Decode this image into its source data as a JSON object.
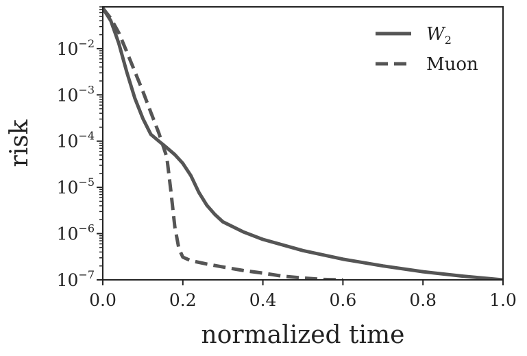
{
  "chart_data": {
    "type": "line",
    "title": "",
    "xlabel": "normalized time",
    "ylabel": "risk",
    "xlim": [
      0.0,
      1.0
    ],
    "ylim": [
      1e-07,
      0.08
    ],
    "yscale": "log",
    "grid": false,
    "legend_position": "top-right",
    "x_ticks": [
      {
        "value": 0.0,
        "label": "0.0"
      },
      {
        "value": 0.2,
        "label": "0.2"
      },
      {
        "value": 0.4,
        "label": "0.4"
      },
      {
        "value": 0.6,
        "label": "0.6"
      },
      {
        "value": 0.8,
        "label": "0.8"
      },
      {
        "value": 1.0,
        "label": "1.0"
      }
    ],
    "y_ticks": [
      {
        "value": 1e-07,
        "base": "10",
        "exp": "−7"
      },
      {
        "value": 1e-06,
        "base": "10",
        "exp": "−6"
      },
      {
        "value": 1e-05,
        "base": "10",
        "exp": "−5"
      },
      {
        "value": 0.0001,
        "base": "10",
        "exp": "−4"
      },
      {
        "value": 0.001,
        "base": "10",
        "exp": "−3"
      },
      {
        "value": 0.01,
        "base": "10",
        "exp": "−2"
      }
    ],
    "series": [
      {
        "name": "W",
        "name_sub": "2",
        "style": "solid",
        "color": "#555555",
        "x": [
          0.0,
          0.02,
          0.04,
          0.06,
          0.08,
          0.1,
          0.12,
          0.14,
          0.16,
          0.18,
          0.2,
          0.22,
          0.24,
          0.26,
          0.28,
          0.3,
          0.35,
          0.4,
          0.5,
          0.6,
          0.7,
          0.8,
          0.9,
          1.0
        ],
        "y": [
          0.075,
          0.04,
          0.013,
          0.0031,
          0.00085,
          0.00031,
          0.00014,
          0.0001,
          7.2e-05,
          5.1e-05,
          3.3e-05,
          1.8e-05,
          7.8e-06,
          4.1e-06,
          2.6e-06,
          1.8e-06,
          1.1e-06,
          7.5e-07,
          4.3e-07,
          2.8e-07,
          2e-07,
          1.5e-07,
          1.2e-07,
          1e-07
        ]
      },
      {
        "name": "Muon",
        "style": "dashed",
        "color": "#555555",
        "x": [
          0.0,
          0.02,
          0.04,
          0.06,
          0.08,
          0.1,
          0.12,
          0.14,
          0.16,
          0.17,
          0.18,
          0.19,
          0.2,
          0.22,
          0.26,
          0.3,
          0.35,
          0.4,
          0.45,
          0.5,
          0.55,
          0.6
        ],
        "y": [
          0.075,
          0.045,
          0.022,
          0.0085,
          0.0032,
          0.0012,
          0.00042,
          0.00015,
          4.5e-05,
          8.5e-06,
          1.4e-06,
          4.8e-07,
          3.1e-07,
          2.6e-07,
          2.2e-07,
          1.9e-07,
          1.6e-07,
          1.4e-07,
          1.2e-07,
          1.1e-07,
          1.02e-07,
          1e-07
        ]
      }
    ]
  }
}
